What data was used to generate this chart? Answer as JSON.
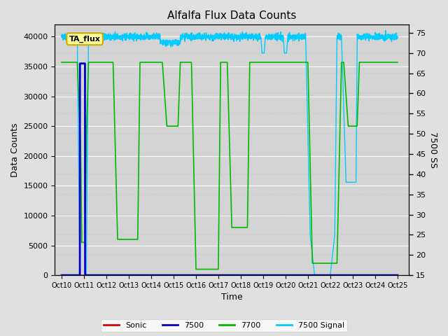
{
  "title": "Alfalfa Flux Data Counts",
  "xlabel": "Time",
  "ylabel_left": "Data Counts",
  "ylabel_right": "7500 SS",
  "xlim_left": [
    0,
    25
  ],
  "ylim_left": [
    0,
    42000
  ],
  "ylim_right": [
    15,
    77
  ],
  "xtick_labels": [
    "Oct 10",
    "Oct 11",
    "Oct 12",
    "Oct 13",
    "Oct 14",
    "Oct 15",
    "Oct 16",
    "Oct 17",
    "Oct 18",
    "Oct 19",
    "Oct 20",
    "Oct 21",
    "Oct 22",
    "Oct 23",
    "Oct 24",
    "Oct 25"
  ],
  "background_color": "#e0e0e0",
  "plot_bg_color": "#d4d4d4",
  "annotation_text": "TA_flux",
  "annotation_color": "#ffff99",
  "annotation_border": "#ccaa00",
  "sonic_color": "#dd0000",
  "s7500_color": "#0000cc",
  "s7700_color": "#00bb00",
  "signal_color": "#00ccff",
  "legend_labels": [
    "Sonic",
    "7500",
    "7700",
    "7500 Signal"
  ],
  "ytick_right": [
    15,
    20,
    25,
    30,
    35,
    40,
    45,
    50,
    55,
    60,
    65,
    70,
    75
  ],
  "ytick_left": [
    0,
    5000,
    10000,
    15000,
    20000,
    25000,
    30000,
    35000,
    40000
  ],
  "figsize": [
    6.4,
    4.8
  ],
  "dpi": 100
}
